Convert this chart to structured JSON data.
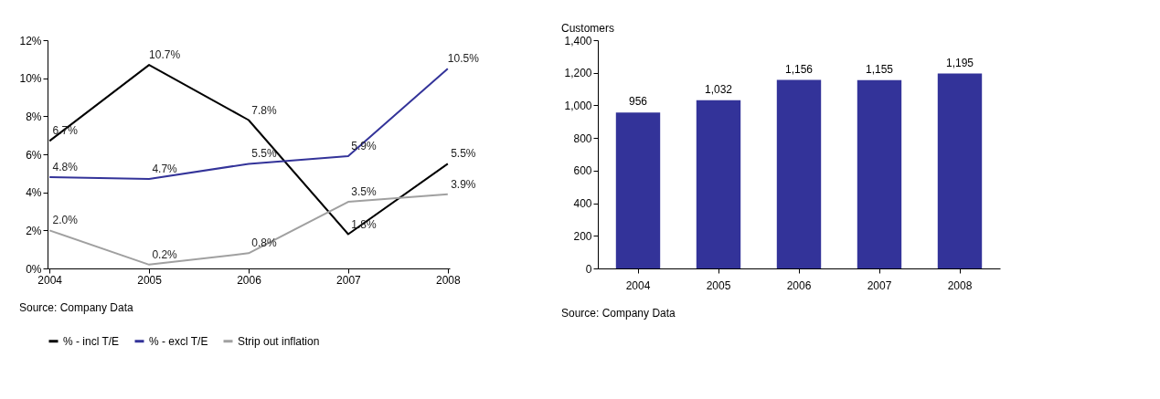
{
  "chart_data": [
    {
      "type": "line",
      "categories": [
        "2004",
        "2005",
        "2006",
        "2007",
        "2008"
      ],
      "ylim": [
        0,
        12
      ],
      "yticks": [
        {
          "value": 0,
          "label": "0%"
        },
        {
          "value": 2,
          "label": "2%"
        },
        {
          "value": 4,
          "label": "4%"
        },
        {
          "value": 6,
          "label": "6%"
        },
        {
          "value": 8,
          "label": "8%"
        },
        {
          "value": 10,
          "label": "10%"
        },
        {
          "value": 12,
          "label": "12%"
        }
      ],
      "series": [
        {
          "name": "% - incl T/E",
          "color": "#000000",
          "values": [
            6.7,
            10.7,
            7.8,
            1.8,
            5.5
          ],
          "value_labels": [
            "6.7%",
            "10.7%",
            "7.8%",
            "1.8%",
            "5.5%"
          ]
        },
        {
          "name": "% - excl T/E",
          "color": "#333399",
          "values": [
            4.8,
            4.7,
            5.5,
            5.9,
            10.5
          ],
          "value_labels": [
            "4.8%",
            "4.7%",
            "5.5%",
            "5.9%",
            "10.5%"
          ]
        },
        {
          "name": "Strip out inflation",
          "color": "#a0a0a0",
          "values": [
            2.0,
            0.2,
            0.8,
            3.5,
            3.9
          ],
          "value_labels": [
            "2.0%",
            "0.2%",
            "0.8%",
            "3.5%",
            "3.9%"
          ]
        }
      ],
      "legend": "bottom",
      "grid": false,
      "annotations": [
        "Source: Company Data"
      ]
    },
    {
      "type": "bar",
      "categories": [
        "2004",
        "2005",
        "2006",
        "2007",
        "2008"
      ],
      "ylabel": "Customers",
      "ylim": [
        0,
        1400
      ],
      "yticks": [
        0,
        200,
        400,
        600,
        800,
        {
          "value": 1000,
          "label": "1,000"
        },
        {
          "value": 1200,
          "label": "1,200"
        },
        {
          "value": 1400,
          "label": "1,400"
        }
      ],
      "values": [
        956,
        1032,
        1156,
        1155,
        1195
      ],
      "color": "#333399",
      "value_labels": [
        "956",
        "1,032",
        "1,156",
        "1,155",
        "1,195"
      ],
      "grid": false,
      "annotations": [
        "Source: Company Data"
      ]
    }
  ]
}
